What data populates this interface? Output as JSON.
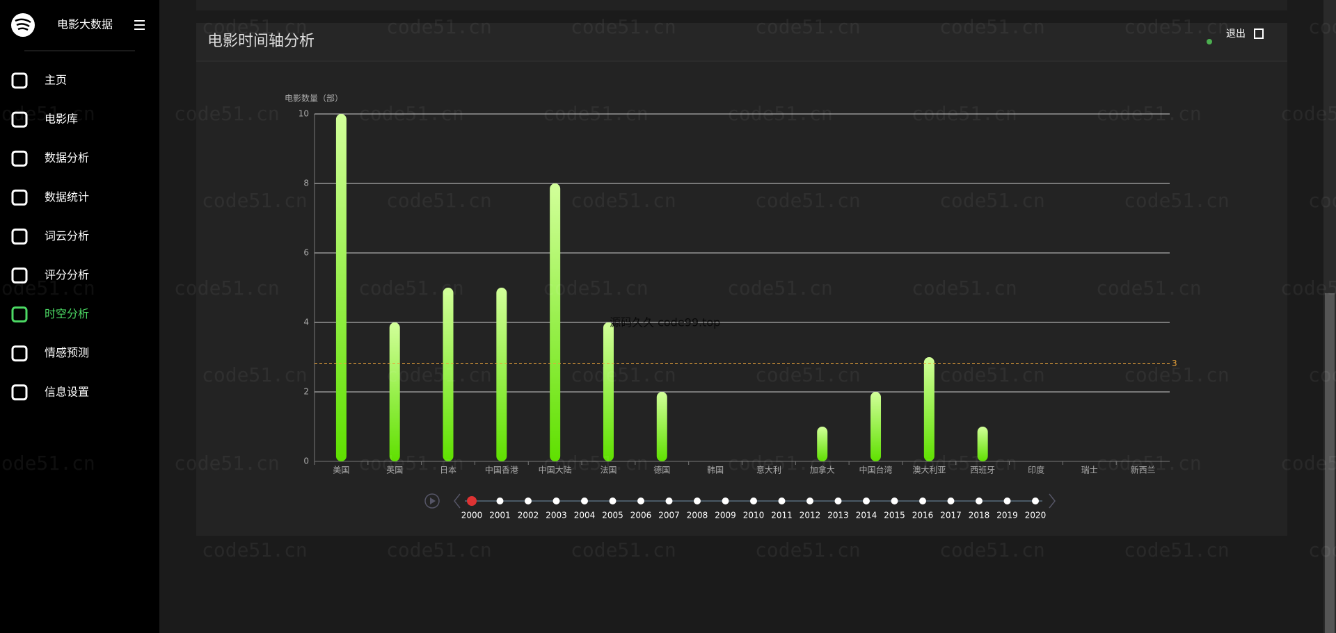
{
  "sidebar": {
    "brand": "电影大数据",
    "menu": [
      "主页",
      "电影库",
      "数据分析",
      "数据统计",
      "词云分析",
      "评分分析",
      "时空分析",
      "情感预测",
      "信息设置"
    ],
    "active": 6
  },
  "panel": {
    "title": "电影时间轴分析",
    "logout": "退出"
  },
  "chart_data": {
    "type": "bar",
    "y_label": "电影数量（部）",
    "categories": [
      "美国",
      "英国",
      "日本",
      "中国香港",
      "中国大陆",
      "法国",
      "德国",
      "韩国",
      "意大利",
      "加拿大",
      "中国台湾",
      "澳大利亚",
      "西班牙",
      "印度",
      "瑞士",
      "新西兰"
    ],
    "values": [
      10,
      4,
      5,
      5,
      8,
      4,
      2,
      0,
      0,
      1,
      2,
      3,
      1,
      0,
      0,
      0
    ],
    "ylim": [
      0,
      10
    ],
    "yticks": [
      0,
      2,
      4,
      6,
      8,
      10
    ],
    "grid": true,
    "color_top": "#d2ff9a",
    "color_bottom": "#5fe000",
    "mark_line": {
      "value": 2.81,
      "label": "3",
      "color": "#e8a23a"
    }
  },
  "timeline": {
    "years": [
      "2000",
      "2001",
      "2002",
      "2003",
      "2004",
      "2005",
      "2006",
      "2007",
      "2008",
      "2009",
      "2010",
      "2011",
      "2012",
      "2013",
      "2014",
      "2015",
      "2016",
      "2017",
      "2018",
      "2019",
      "2020"
    ],
    "current": 0
  },
  "watermarks": {
    "site": "code51.cn",
    "overlay": "源码久久 code99.top"
  }
}
